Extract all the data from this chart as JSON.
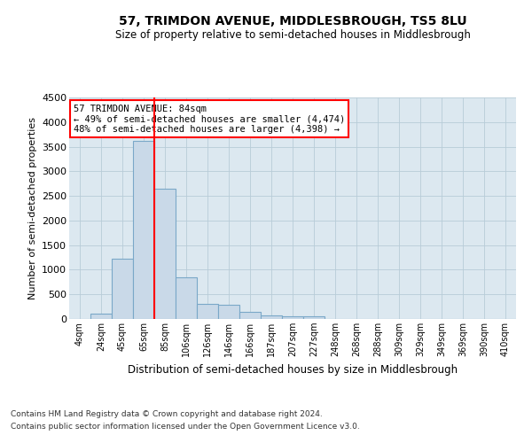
{
  "title": "57, TRIMDON AVENUE, MIDDLESBROUGH, TS5 8LU",
  "subtitle": "Size of property relative to semi-detached houses in Middlesbrough",
  "xlabel": "Distribution of semi-detached houses by size in Middlesbrough",
  "ylabel": "Number of semi-detached properties",
  "footnote1": "Contains HM Land Registry data © Crown copyright and database right 2024.",
  "footnote2": "Contains public sector information licensed under the Open Government Licence v3.0.",
  "annotation_title": "57 TRIMDON AVENUE: 84sqm",
  "annotation_line1": "← 49% of semi-detached houses are smaller (4,474)",
  "annotation_line2": "48% of semi-detached houses are larger (4,398) →",
  "bar_categories": [
    "4sqm",
    "24sqm",
    "45sqm",
    "65sqm",
    "85sqm",
    "106sqm",
    "126sqm",
    "146sqm",
    "166sqm",
    "187sqm",
    "207sqm",
    "227sqm",
    "248sqm",
    "268sqm",
    "288sqm",
    "309sqm",
    "329sqm",
    "349sqm",
    "369sqm",
    "390sqm",
    "410sqm"
  ],
  "bar_values": [
    0,
    100,
    1220,
    3620,
    2650,
    840,
    300,
    290,
    140,
    80,
    60,
    50,
    0,
    0,
    0,
    0,
    0,
    0,
    0,
    0,
    0
  ],
  "bar_color": "#c9d9e8",
  "bar_edgecolor": "#7aa8c8",
  "vline_color": "red",
  "ylim": [
    0,
    4500
  ],
  "yticks": [
    0,
    500,
    1000,
    1500,
    2000,
    2500,
    3000,
    3500,
    4000,
    4500
  ],
  "grid_color": "#b8ccd8",
  "background_color": "#dce8f0",
  "annotation_box_facecolor": "white",
  "annotation_box_edgecolor": "red"
}
